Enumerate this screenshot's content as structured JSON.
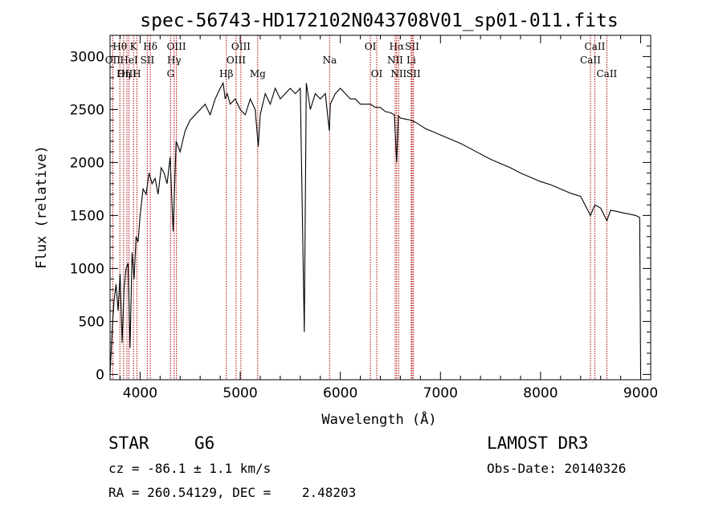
{
  "chart_data": {
    "type": "line",
    "title": "spec-56743-HD172102N043708V01_sp01-011.fits",
    "xlabel": "Wavelength (Å)",
    "ylabel": "Flux (relative)",
    "xlim": [
      3700,
      9100
    ],
    "ylim": [
      -50,
      3200
    ],
    "xticks": [
      4000,
      5000,
      6000,
      7000,
      8000,
      9000
    ],
    "yticks": [
      0,
      500,
      1000,
      1500,
      2000,
      2500,
      3000
    ],
    "grid": false,
    "series": [
      {
        "x": [
          3700,
          3720,
          3740,
          3760,
          3780,
          3800,
          3820,
          3840,
          3860,
          3880,
          3900,
          3920,
          3940,
          3960,
          3980,
          4000,
          4030,
          4060,
          4090,
          4120,
          4150,
          4180,
          4210,
          4240,
          4270,
          4300,
          4330,
          4360,
          4400,
          4450,
          4500,
          4550,
          4600,
          4650,
          4700,
          4750,
          4800,
          4830,
          4850,
          4870,
          4900,
          4950,
          5000,
          5050,
          5100,
          5150,
          5180,
          5200,
          5250,
          5300,
          5350,
          5400,
          5450,
          5500,
          5550,
          5600,
          5640,
          5660,
          5700,
          5750,
          5800,
          5850,
          5890,
          5900,
          5950,
          6000,
          6050,
          6100,
          6150,
          6200,
          6250,
          6300,
          6350,
          6400,
          6450,
          6500,
          6540,
          6563,
          6580,
          6600,
          6650,
          6700,
          6750,
          6800,
          6850,
          6900,
          6950,
          7000,
          7100,
          7200,
          7300,
          7400,
          7500,
          7600,
          7700,
          7800,
          7900,
          8000,
          8100,
          8200,
          8300,
          8400,
          8498,
          8542,
          8600,
          8662,
          8700,
          8750,
          8800,
          8850,
          8900,
          8950,
          8990,
          9000
        ],
        "y": [
          0,
          400,
          700,
          850,
          600,
          950,
          300,
          800,
          1000,
          1050,
          250,
          1150,
          900,
          1300,
          1250,
          1500,
          1750,
          1700,
          1900,
          1800,
          1850,
          1700,
          1950,
          1900,
          1800,
          2050,
          1350,
          2200,
          2100,
          2300,
          2400,
          2450,
          2500,
          2550,
          2450,
          2600,
          2700,
          2750,
          2600,
          2650,
          2550,
          2600,
          2500,
          2450,
          2600,
          2500,
          2150,
          2450,
          2650,
          2550,
          2700,
          2600,
          2650,
          2700,
          2650,
          2700,
          400,
          2750,
          2500,
          2650,
          2600,
          2650,
          2300,
          2550,
          2650,
          2700,
          2650,
          2600,
          2600,
          2550,
          2550,
          2550,
          2520,
          2520,
          2480,
          2470,
          2450,
          2000,
          2440,
          2420,
          2410,
          2400,
          2380,
          2350,
          2320,
          2300,
          2280,
          2260,
          2220,
          2180,
          2130,
          2080,
          2030,
          1990,
          1950,
          1900,
          1860,
          1820,
          1790,
          1750,
          1710,
          1680,
          1500,
          1600,
          1570,
          1450,
          1550,
          1540,
          1530,
          1520,
          1510,
          1500,
          1480,
          0
        ]
      }
    ],
    "emission_lines": [
      {
        "label": "Hθ",
        "x": 3798,
        "row": 0
      },
      {
        "label": "K",
        "x": 3934,
        "row": 0
      },
      {
        "label": "Hδ",
        "x": 4102,
        "row": 0
      },
      {
        "label": "OII",
        "x": 3727,
        "row": 1
      },
      {
        "label": "HeI",
        "x": 3889,
        "row": 1
      },
      {
        "label": "SII",
        "x": 4072,
        "row": 1
      },
      {
        "label": "OIII",
        "x": 3869,
        "row": 2
      },
      {
        "label": "Hη",
        "x": 3835,
        "row": 2
      },
      {
        "label": "H",
        "x": 3968,
        "row": 2
      },
      {
        "label": "OIII",
        "x": 4363,
        "row": 0
      },
      {
        "label": "Hγ",
        "x": 4340,
        "row": 1
      },
      {
        "label": "G",
        "x": 4305,
        "row": 2
      },
      {
        "label": "Hβ",
        "x": 4861,
        "row": 2
      },
      {
        "label": "OIII",
        "x": 5007,
        "row": 0
      },
      {
        "label": "OIII",
        "x": 4959,
        "row": 1
      },
      {
        "label": "Mg",
        "x": 5175,
        "row": 2
      },
      {
        "label": "Na",
        "x": 5893,
        "row": 1
      },
      {
        "label": "OI",
        "x": 6300,
        "row": 0
      },
      {
        "label": "OI",
        "x": 6364,
        "row": 2
      },
      {
        "label": "Hα",
        "x": 6563,
        "row": 0
      },
      {
        "label": "SII",
        "x": 6717,
        "row": 0
      },
      {
        "label": "NII",
        "x": 6548,
        "row": 1
      },
      {
        "label": "Li",
        "x": 6708,
        "row": 1
      },
      {
        "label": "NII",
        "x": 6583,
        "row": 2
      },
      {
        "label": "SII",
        "x": 6731,
        "row": 2
      },
      {
        "label": "CaII",
        "x": 8542,
        "row": 0
      },
      {
        "label": "CaII",
        "x": 8498,
        "row": 1
      },
      {
        "label": "CaII",
        "x": 8662,
        "row": 2
      }
    ]
  },
  "info": {
    "object_class": "STAR",
    "subclass": "G6",
    "survey": "LAMOST DR3",
    "redshift": "cz = -86.1 ± 1.1 km/s",
    "obs_date": "Obs-Date: 20140326",
    "coords": "RA = 260.54129, DEC =    2.48203"
  }
}
